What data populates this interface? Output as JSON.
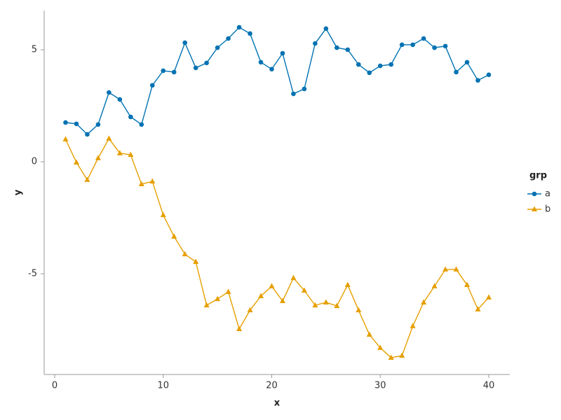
{
  "chart_data": {
    "type": "line",
    "x_label": "x",
    "y_label": "y",
    "legend_title": "grp",
    "x": [
      1,
      2,
      3,
      4,
      5,
      6,
      7,
      8,
      9,
      10,
      11,
      12,
      13,
      14,
      15,
      16,
      17,
      18,
      19,
      20,
      21,
      22,
      23,
      24,
      25,
      26,
      27,
      28,
      29,
      30,
      31,
      32,
      33,
      34,
      35,
      36,
      37,
      38,
      39,
      40
    ],
    "series": [
      {
        "name": "a",
        "color": "#0072b2",
        "marker": "circle",
        "values": [
          1.75,
          1.69,
          1.22,
          1.66,
          3.09,
          2.78,
          2.0,
          1.66,
          3.41,
          4.06,
          4.0,
          5.31,
          4.19,
          4.41,
          5.09,
          5.5,
          6.0,
          5.72,
          4.44,
          4.13,
          4.84,
          3.03,
          3.25,
          5.28,
          5.94,
          5.09,
          5.0,
          4.34,
          3.97,
          4.28,
          4.34,
          5.22,
          5.22,
          5.5,
          5.09,
          5.16,
          4.0,
          4.44,
          3.63,
          3.88
        ]
      },
      {
        "name": "b",
        "color": "#e69f00",
        "marker": "triangle",
        "values": [
          1.0,
          -0.03,
          -0.81,
          0.16,
          1.03,
          0.38,
          0.31,
          -1.0,
          -0.88,
          -2.38,
          -3.34,
          -4.13,
          -4.47,
          -6.41,
          -6.13,
          -5.81,
          -7.47,
          -6.63,
          -6.0,
          -5.56,
          -6.22,
          -5.19,
          -5.75,
          -6.41,
          -6.28,
          -6.44,
          -5.5,
          -6.63,
          -7.72,
          -8.31,
          -8.75,
          -8.66,
          -7.34,
          -6.28,
          -5.56,
          -4.81,
          -4.81,
          -5.5,
          -6.59,
          -6.06
        ]
      }
    ],
    "xlim": [
      -0.97,
      41.94
    ],
    "xticks": [
      0,
      10,
      20,
      30,
      40
    ],
    "ylim": [
      -9.5,
      6.75
    ],
    "yticks": [
      -5,
      0,
      5
    ],
    "grid": false
  }
}
